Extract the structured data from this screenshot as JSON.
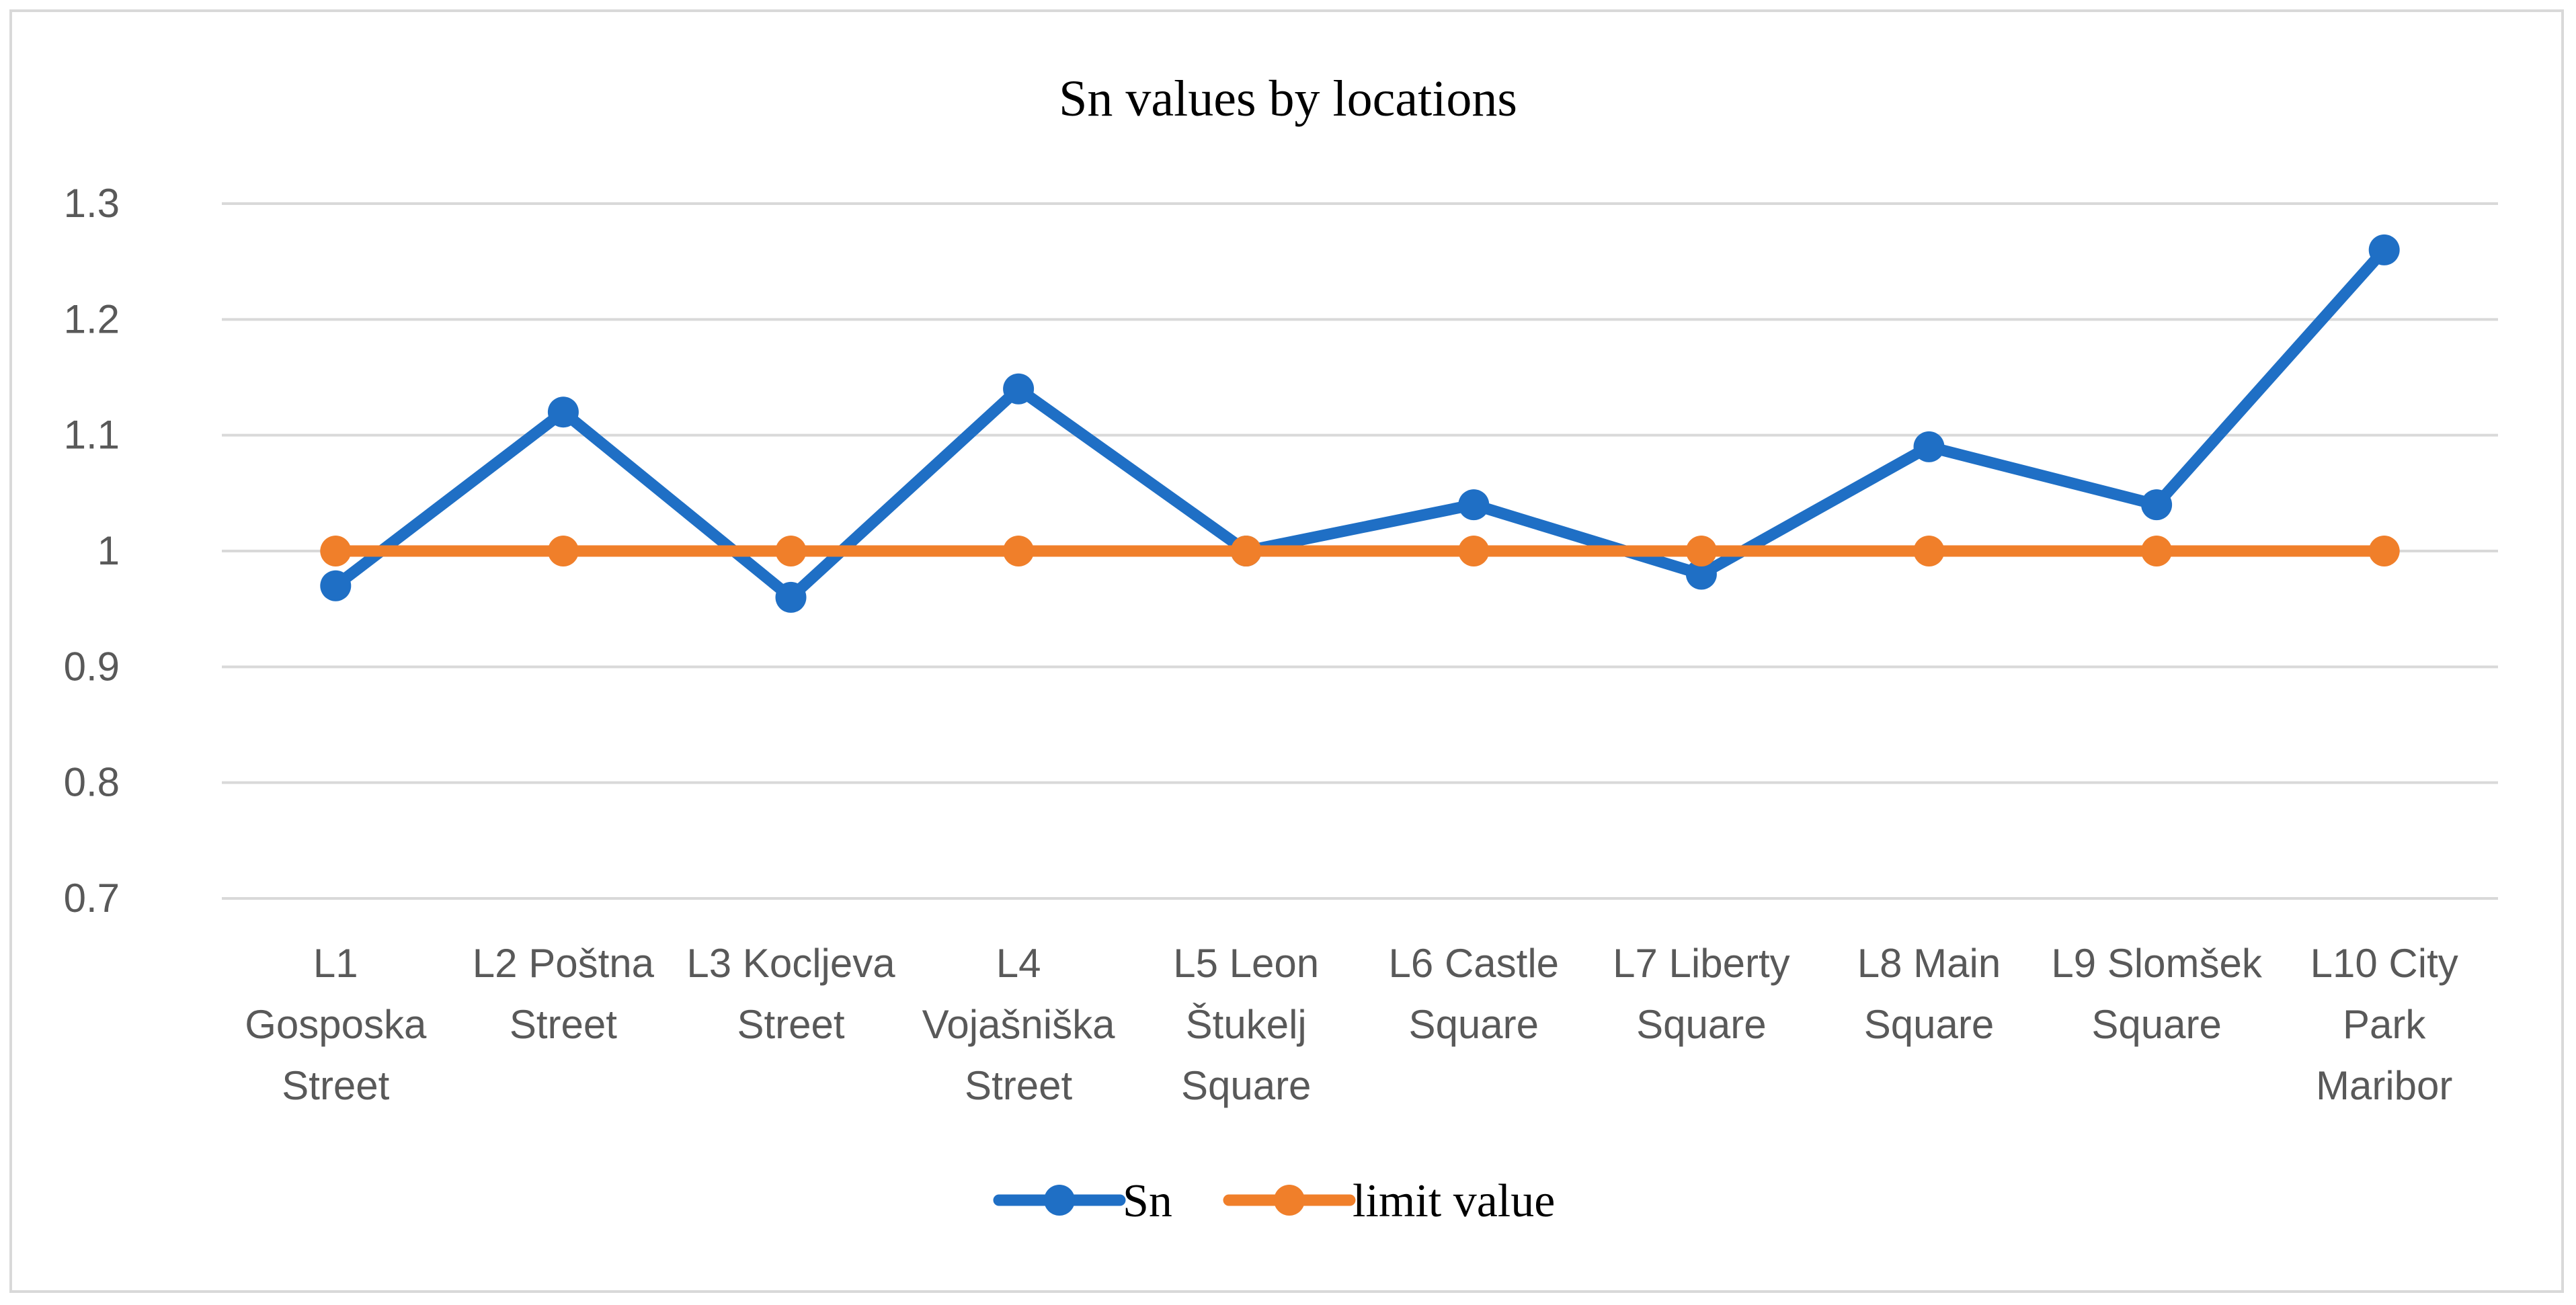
{
  "chart_data": {
    "type": "line",
    "title": "Sn values by locations",
    "xlabel": "",
    "ylabel": "",
    "categories": [
      [
        "L1",
        "Gosposka",
        "Street"
      ],
      [
        "L2 Poštna",
        "Street"
      ],
      [
        "L3 Kocljeva",
        "Street"
      ],
      [
        "L4",
        "Vojašniška",
        "Street"
      ],
      [
        "L5 Leon",
        "Štukelj",
        "Square"
      ],
      [
        "L6 Castle",
        "Square"
      ],
      [
        "L7 Liberty",
        "Square"
      ],
      [
        "L8 Main",
        "Square"
      ],
      [
        "L9 Slomšek",
        "Square"
      ],
      [
        "L10 City",
        "Park",
        "Maribor"
      ]
    ],
    "ylim": [
      0.7,
      1.3
    ],
    "yticks": [
      "0.7",
      "0.8",
      "0.9",
      "1",
      "1.1",
      "1.2",
      "1.3"
    ],
    "grid": true,
    "legend_position": "bottom",
    "series": [
      {
        "name": "Sn",
        "color": "#1f6fc5",
        "values": [
          0.97,
          1.12,
          0.96,
          1.14,
          1.0,
          1.04,
          0.98,
          1.09,
          1.04,
          1.26
        ]
      },
      {
        "name": "limit value",
        "color": "#f07f2a",
        "values": [
          1.0,
          1.0,
          1.0,
          1.0,
          1.0,
          1.0,
          1.0,
          1.0,
          1.0,
          1.0
        ]
      }
    ]
  }
}
